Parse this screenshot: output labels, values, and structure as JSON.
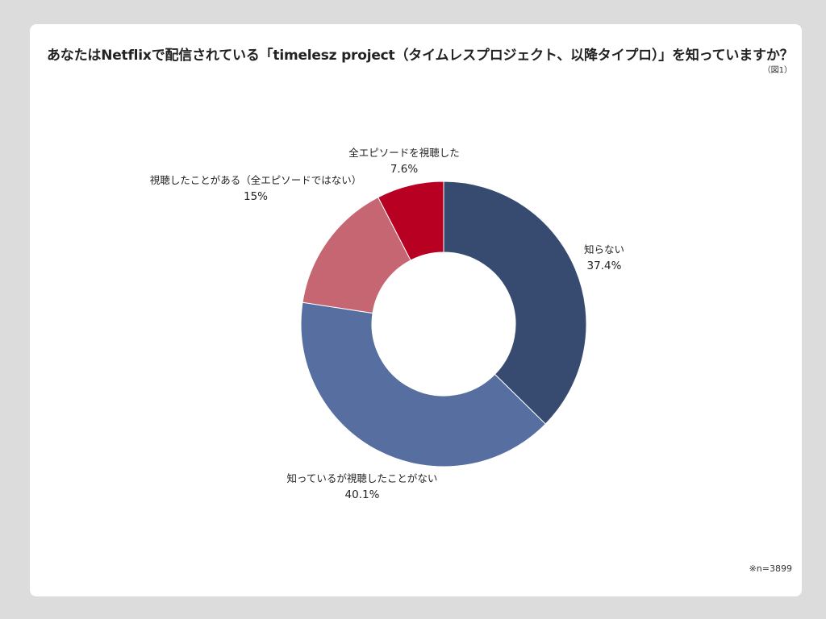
{
  "title": "あなたはNetflixで配信されている「timelesz project（タイムレスプロジェクト、以降タイプロ）」を知っていますか？",
  "figure_label": "（図1）",
  "note": "※n=3899",
  "chart_data": {
    "type": "pie",
    "donut": true,
    "start_angle_deg": 0,
    "direction": "clockwise",
    "slices": [
      {
        "label": "知らない",
        "value": 37.4,
        "display": "37.4%",
        "color": "#374a70"
      },
      {
        "label": "知っているが視聴したことがない",
        "value": 40.1,
        "display": "40.1%",
        "color": "#566fa0"
      },
      {
        "label": "視聴したことがある（全エピソードではない）",
        "value": 15,
        "display": "15%",
        "color": "#c66672"
      },
      {
        "label": "全エピソードを視聴した",
        "value": 7.6,
        "display": "7.6%",
        "color": "#b80022"
      }
    ],
    "legend": "none"
  }
}
